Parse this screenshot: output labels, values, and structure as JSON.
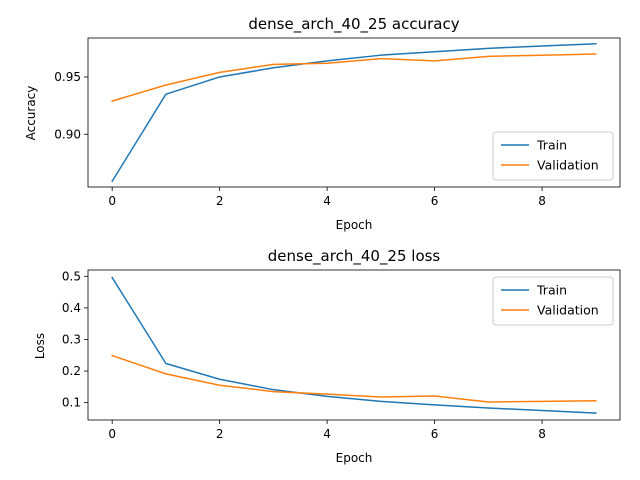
{
  "chart_data": [
    {
      "type": "line",
      "title": "dense_arch_40_25 accuracy",
      "xlabel": "Epoch",
      "ylabel": "Accuracy",
      "x": [
        0,
        1,
        2,
        3,
        4,
        5,
        6,
        7,
        8,
        9
      ],
      "xlim": [
        -0.45,
        9.45
      ],
      "ylim": [
        0.854,
        0.984
      ],
      "xticks": [
        0,
        2,
        4,
        6,
        8
      ],
      "yticks": [
        0.9,
        0.95
      ],
      "ytick_labels": [
        "0.90",
        "0.95"
      ],
      "legend_position": "lower-right",
      "grid": false,
      "series": [
        {
          "name": "Train",
          "color": "#1f77b4",
          "values": [
            0.859,
            0.935,
            0.95,
            0.958,
            0.964,
            0.969,
            0.972,
            0.975,
            0.977,
            0.979
          ]
        },
        {
          "name": "Validation",
          "color": "#ff7f0e",
          "values": [
            0.929,
            0.943,
            0.954,
            0.961,
            0.962,
            0.966,
            0.964,
            0.968,
            0.969,
            0.97
          ]
        }
      ]
    },
    {
      "type": "line",
      "title": "dense_arch_40_25 loss",
      "xlabel": "Epoch",
      "ylabel": "Loss",
      "x": [
        0,
        1,
        2,
        3,
        4,
        5,
        6,
        7,
        8,
        9
      ],
      "xlim": [
        -0.45,
        9.45
      ],
      "ylim": [
        0.045,
        0.52
      ],
      "xticks": [
        0,
        2,
        4,
        6,
        8
      ],
      "yticks": [
        0.1,
        0.2,
        0.3,
        0.4,
        0.5
      ],
      "ytick_labels": [
        "0.1",
        "0.2",
        "0.3",
        "0.4",
        "0.5"
      ],
      "legend_position": "upper-right",
      "grid": false,
      "series": [
        {
          "name": "Train",
          "color": "#1f77b4",
          "values": [
            0.496,
            0.224,
            0.174,
            0.141,
            0.12,
            0.104,
            0.093,
            0.083,
            0.075,
            0.067
          ]
        },
        {
          "name": "Validation",
          "color": "#ff7f0e",
          "values": [
            0.249,
            0.191,
            0.155,
            0.135,
            0.127,
            0.118,
            0.121,
            0.102,
            0.104,
            0.106
          ]
        }
      ]
    }
  ]
}
